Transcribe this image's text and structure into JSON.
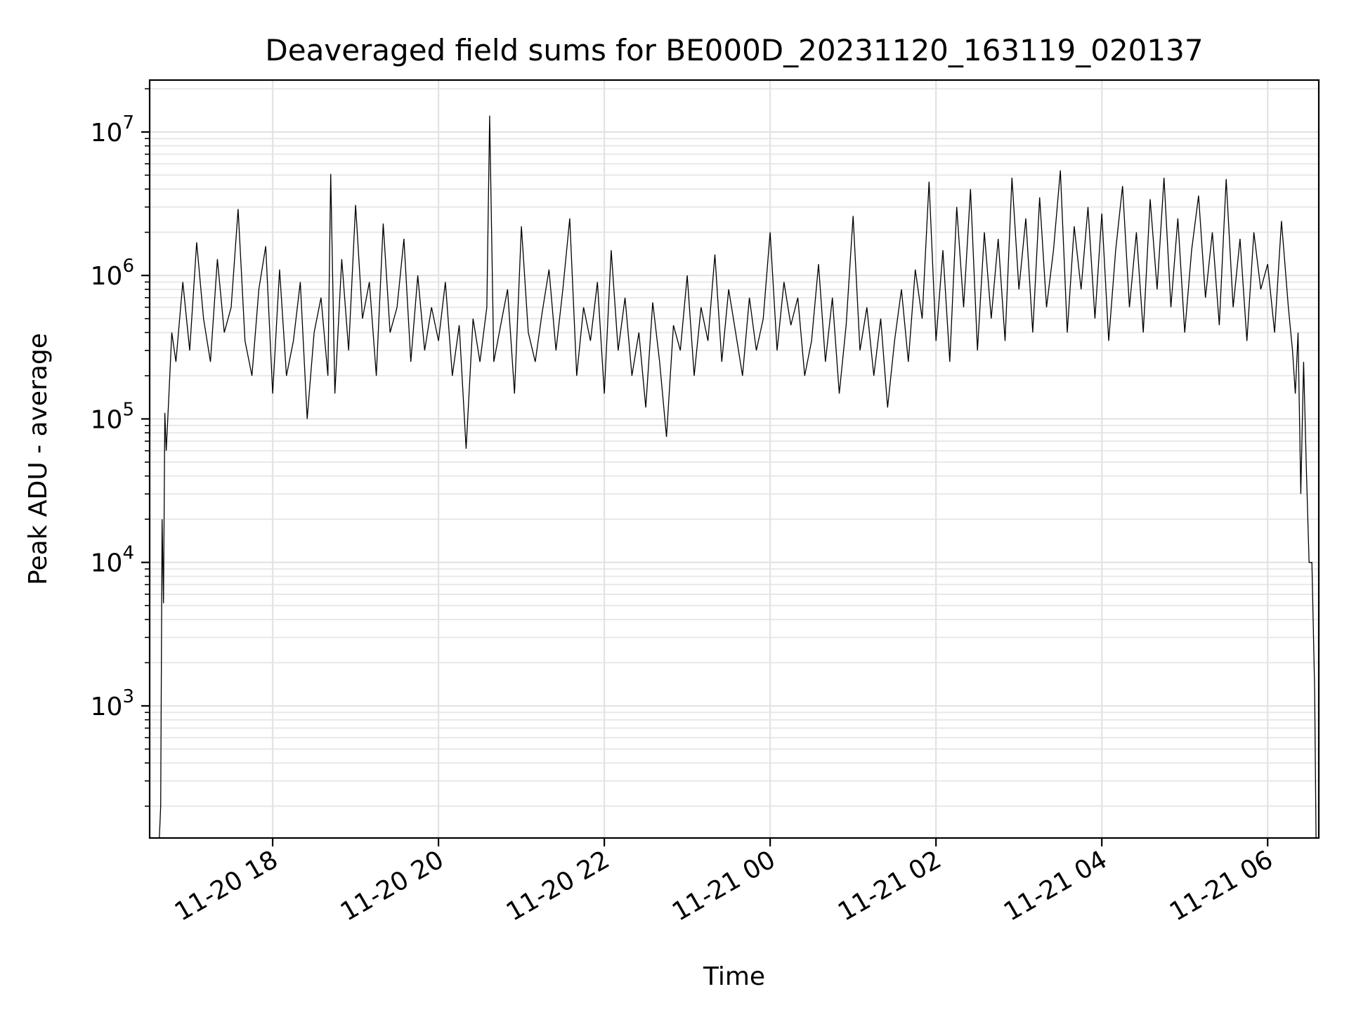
{
  "chart_data": {
    "type": "line",
    "title": "Deaveraged field sums for BE000D_20231120_163119_020137",
    "xlabel": "Time",
    "ylabel": "Peak ADU - average",
    "yscale": "log",
    "ylim": [
      120,
      23000000
    ],
    "xlim": [
      "2023-11-20 16:31",
      "2023-11-21 06:37"
    ],
    "grid": true,
    "grid_minor": true,
    "colors": {
      "series": "#000000",
      "grid": "#e3e3e3",
      "background": "#ffffff"
    },
    "x_ticks": [
      "2023-11-20 18:00",
      "2023-11-20 20:00",
      "2023-11-20 22:00",
      "2023-11-21 00:00",
      "2023-11-21 02:00",
      "2023-11-21 04:00",
      "2023-11-21 06:00"
    ],
    "x_tick_labels": [
      "11-20 18",
      "11-20 20",
      "11-20 22",
      "11-21 00",
      "11-21 02",
      "11-21 04",
      "11-21 06"
    ],
    "y_ticks": [
      1000,
      10000,
      100000,
      1000000,
      10000000
    ],
    "y_tick_labels": [
      {
        "base": "10",
        "exp": "3"
      },
      {
        "base": "10",
        "exp": "4"
      },
      {
        "base": "10",
        "exp": "5"
      },
      {
        "base": "10",
        "exp": "6"
      },
      {
        "base": "10",
        "exp": "7"
      }
    ],
    "series": [
      {
        "x": [
          "2023-11-20 16:38",
          "2023-11-20 16:39",
          "2023-11-20 16:40",
          "2023-11-20 16:41",
          "2023-11-20 16:42",
          "2023-11-20 16:43",
          "2023-11-20 16:45",
          "2023-11-20 16:47",
          "2023-11-20 16:50",
          "2023-11-20 16:55",
          "2023-11-20 17:00",
          "2023-11-20 17:05",
          "2023-11-20 17:10",
          "2023-11-20 17:15",
          "2023-11-20 17:20",
          "2023-11-20 17:25",
          "2023-11-20 17:30",
          "2023-11-20 17:35",
          "2023-11-20 17:40",
          "2023-11-20 17:45",
          "2023-11-20 17:50",
          "2023-11-20 17:55",
          "2023-11-20 18:00",
          "2023-11-20 18:05",
          "2023-11-20 18:10",
          "2023-11-20 18:15",
          "2023-11-20 18:20",
          "2023-11-20 18:25",
          "2023-11-20 18:30",
          "2023-11-20 18:35",
          "2023-11-20 18:40",
          "2023-11-20 18:42",
          "2023-11-20 18:45",
          "2023-11-20 18:50",
          "2023-11-20 18:55",
          "2023-11-20 19:00",
          "2023-11-20 19:05",
          "2023-11-20 19:10",
          "2023-11-20 19:15",
          "2023-11-20 19:20",
          "2023-11-20 19:25",
          "2023-11-20 19:30",
          "2023-11-20 19:35",
          "2023-11-20 19:40",
          "2023-11-20 19:45",
          "2023-11-20 19:50",
          "2023-11-20 19:55",
          "2023-11-20 20:00",
          "2023-11-20 20:05",
          "2023-11-20 20:10",
          "2023-11-20 20:15",
          "2023-11-20 20:20",
          "2023-11-20 20:25",
          "2023-11-20 20:30",
          "2023-11-20 20:35",
          "2023-11-20 20:37",
          "2023-11-20 20:40",
          "2023-11-20 20:45",
          "2023-11-20 20:50",
          "2023-11-20 20:55",
          "2023-11-20 21:00",
          "2023-11-20 21:05",
          "2023-11-20 21:10",
          "2023-11-20 21:15",
          "2023-11-20 21:20",
          "2023-11-20 21:25",
          "2023-11-20 21:30",
          "2023-11-20 21:35",
          "2023-11-20 21:40",
          "2023-11-20 21:45",
          "2023-11-20 21:50",
          "2023-11-20 21:55",
          "2023-11-20 22:00",
          "2023-11-20 22:05",
          "2023-11-20 22:10",
          "2023-11-20 22:15",
          "2023-11-20 22:20",
          "2023-11-20 22:25",
          "2023-11-20 22:30",
          "2023-11-20 22:35",
          "2023-11-20 22:40",
          "2023-11-20 22:45",
          "2023-11-20 22:50",
          "2023-11-20 22:55",
          "2023-11-20 23:00",
          "2023-11-20 23:05",
          "2023-11-20 23:10",
          "2023-11-20 23:15",
          "2023-11-20 23:20",
          "2023-11-20 23:25",
          "2023-11-20 23:30",
          "2023-11-20 23:35",
          "2023-11-20 23:40",
          "2023-11-20 23:45",
          "2023-11-20 23:50",
          "2023-11-20 23:55",
          "2023-11-21 00:00",
          "2023-11-21 00:05",
          "2023-11-21 00:10",
          "2023-11-21 00:15",
          "2023-11-21 00:20",
          "2023-11-21 00:25",
          "2023-11-21 00:30",
          "2023-11-21 00:35",
          "2023-11-21 00:40",
          "2023-11-21 00:45",
          "2023-11-21 00:50",
          "2023-11-21 00:55",
          "2023-11-21 01:00",
          "2023-11-21 01:05",
          "2023-11-21 01:10",
          "2023-11-21 01:15",
          "2023-11-21 01:20",
          "2023-11-21 01:25",
          "2023-11-21 01:30",
          "2023-11-21 01:35",
          "2023-11-21 01:40",
          "2023-11-21 01:45",
          "2023-11-21 01:50",
          "2023-11-21 01:55",
          "2023-11-21 02:00",
          "2023-11-21 02:05",
          "2023-11-21 02:10",
          "2023-11-21 02:15",
          "2023-11-21 02:20",
          "2023-11-21 02:25",
          "2023-11-21 02:30",
          "2023-11-21 02:35",
          "2023-11-21 02:40",
          "2023-11-21 02:45",
          "2023-11-21 02:50",
          "2023-11-21 02:55",
          "2023-11-21 03:00",
          "2023-11-21 03:05",
          "2023-11-21 03:10",
          "2023-11-21 03:15",
          "2023-11-21 03:20",
          "2023-11-21 03:25",
          "2023-11-21 03:30",
          "2023-11-21 03:35",
          "2023-11-21 03:40",
          "2023-11-21 03:45",
          "2023-11-21 03:50",
          "2023-11-21 03:55",
          "2023-11-21 04:00",
          "2023-11-21 04:05",
          "2023-11-21 04:10",
          "2023-11-21 04:15",
          "2023-11-21 04:20",
          "2023-11-21 04:25",
          "2023-11-21 04:30",
          "2023-11-21 04:35",
          "2023-11-21 04:40",
          "2023-11-21 04:45",
          "2023-11-21 04:50",
          "2023-11-21 04:55",
          "2023-11-21 05:00",
          "2023-11-21 05:05",
          "2023-11-21 05:10",
          "2023-11-21 05:15",
          "2023-11-21 05:20",
          "2023-11-21 05:25",
          "2023-11-21 05:30",
          "2023-11-21 05:35",
          "2023-11-21 05:40",
          "2023-11-21 05:45",
          "2023-11-21 05:50",
          "2023-11-21 05:55",
          "2023-11-21 06:00",
          "2023-11-21 06:05",
          "2023-11-21 06:10",
          "2023-11-21 06:15",
          "2023-11-21 06:18",
          "2023-11-21 06:20",
          "2023-11-21 06:22",
          "2023-11-21 06:24",
          "2023-11-21 06:26",
          "2023-11-21 06:28",
          "2023-11-21 06:30",
          "2023-11-21 06:32",
          "2023-11-21 06:34",
          "2023-11-21 06:35"
        ],
        "y": [
          120,
          200,
          20000,
          5200,
          110000,
          60000,
          150000,
          400000,
          250000,
          900000,
          300000,
          1700000,
          500000,
          250000,
          1300000,
          400000,
          600000,
          2900000,
          350000,
          200000,
          800000,
          1600000,
          150000,
          1100000,
          200000,
          350000,
          900000,
          100000,
          400000,
          700000,
          200000,
          5100000,
          150000,
          1300000,
          300000,
          3100000,
          500000,
          900000,
          200000,
          2300000,
          400000,
          600000,
          1800000,
          250000,
          1000000,
          300000,
          600000,
          350000,
          900000,
          200000,
          450000,
          62000,
          500000,
          250000,
          600000,
          13000000,
          250000,
          450000,
          800000,
          150000,
          2200000,
          400000,
          250000,
          550000,
          1100000,
          300000,
          800000,
          2500000,
          200000,
          600000,
          350000,
          900000,
          150000,
          1500000,
          300000,
          700000,
          200000,
          400000,
          120000,
          650000,
          250000,
          75000,
          450000,
          300000,
          1000000,
          200000,
          600000,
          350000,
          1400000,
          250000,
          800000,
          400000,
          200000,
          700000,
          300000,
          500000,
          2000000,
          300000,
          900000,
          450000,
          700000,
          200000,
          350000,
          1200000,
          250000,
          700000,
          150000,
          450000,
          2600000,
          300000,
          600000,
          200000,
          500000,
          120000,
          350000,
          800000,
          250000,
          1100000,
          500000,
          4500000,
          350000,
          1500000,
          250000,
          3000000,
          600000,
          4000000,
          300000,
          2000000,
          500000,
          1800000,
          350000,
          4800000,
          800000,
          2500000,
          400000,
          3500000,
          600000,
          1500000,
          5400000,
          400000,
          2200000,
          800000,
          3000000,
          500000,
          2700000,
          350000,
          1500000,
          4200000,
          600000,
          2000000,
          400000,
          3400000,
          800000,
          4800000,
          600000,
          2500000,
          400000,
          1500000,
          3600000,
          700000,
          2000000,
          450000,
          4700000,
          600000,
          1800000,
          350000,
          2000000,
          800000,
          1200000,
          400000,
          2400000,
          600000,
          300000,
          150000,
          400000,
          30000,
          250000,
          45000,
          10000,
          10000,
          1300,
          120
        ]
      }
    ]
  }
}
